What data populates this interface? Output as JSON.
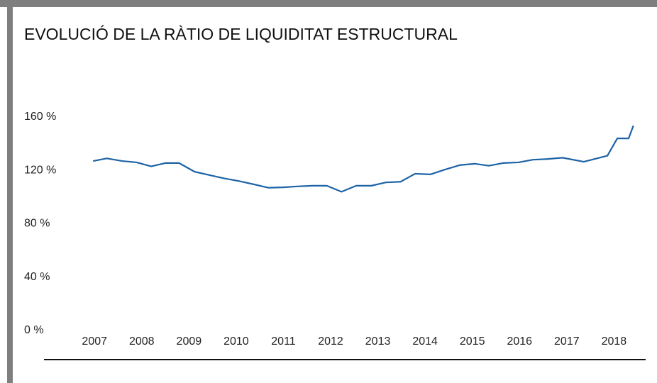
{
  "chart_data": {
    "type": "line",
    "title": "EVOLUCIÓ DE LA RÀTIO DE LIQUIDITAT ESTRUCTURAL",
    "x": [
      2006.97,
      2007.26,
      2007.59,
      2007.89,
      2008.2,
      2008.5,
      2008.79,
      2009.12,
      2009.43,
      2009.75,
      2010.06,
      2010.38,
      2010.68,
      2010.99,
      2011.29,
      2011.62,
      2011.92,
      2012.23,
      2012.54,
      2012.86,
      2013.17,
      2013.48,
      2013.79,
      2014.11,
      2014.41,
      2014.74,
      2015.05,
      2015.35,
      2015.65,
      2015.98,
      2016.28,
      2016.58,
      2016.91,
      2017.36,
      2017.86,
      2018.07,
      2018.31,
      2018.41
    ],
    "series": [
      {
        "color": "#1d63a6",
        "values": [
          127,
          129,
          127,
          126,
          123,
          125.5,
          125.5,
          119,
          116.5,
          114,
          112,
          109.5,
          107,
          107.3,
          108,
          108.5,
          108.5,
          104,
          108.5,
          108.5,
          111,
          111.5,
          117.5,
          117,
          120.5,
          124,
          125,
          123.5,
          125.5,
          126,
          128,
          128.5,
          129.5,
          126.5,
          131,
          144,
          144,
          153.5
        ]
      }
    ],
    "xlim": [
      2005.93,
      2018.67
    ],
    "xticks": [
      2007,
      2008,
      2009,
      2010,
      2011,
      2012,
      2013,
      2014,
      2015,
      2016,
      2017,
      2018
    ],
    "ylim": [
      0,
      160
    ],
    "yticks": [
      {
        "value": 0,
        "label": "0 %"
      },
      {
        "value": 40,
        "label": "40 %"
      },
      {
        "value": 80,
        "label": "80 %"
      },
      {
        "value": 120,
        "label": "120 %"
      },
      {
        "value": 160,
        "label": "160 %"
      }
    ],
    "grid": false
  }
}
